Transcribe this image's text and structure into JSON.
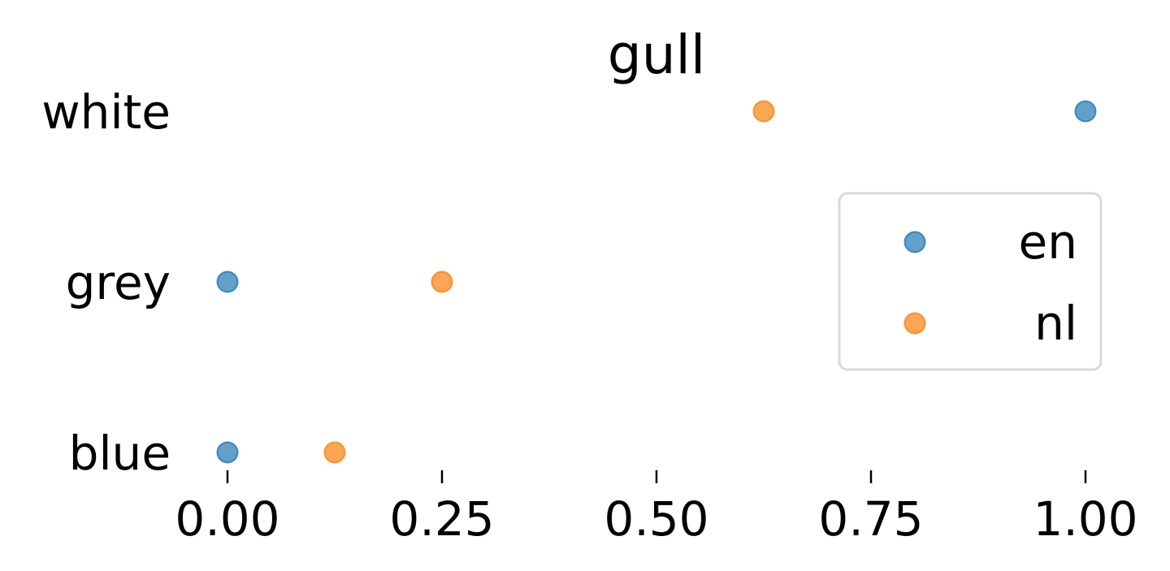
{
  "chart_data": {
    "type": "scatter",
    "title": "gull",
    "categories": [
      "white",
      "grey",
      "blue"
    ],
    "xlim": [
      0,
      1
    ],
    "x_ticks": [
      "0.00",
      "0.25",
      "0.50",
      "0.75",
      "1.00"
    ],
    "x_tick_values": [
      0,
      0.25,
      0.5,
      0.75,
      1.0
    ],
    "grid": false,
    "legend_position": "right",
    "series": [
      {
        "name": "en",
        "color": "#1f77b4",
        "values": [
          1.0,
          0.0,
          0.0
        ]
      },
      {
        "name": "nl",
        "color": "#ff7f0e",
        "values": [
          0.625,
          0.25,
          0.125
        ]
      }
    ]
  }
}
